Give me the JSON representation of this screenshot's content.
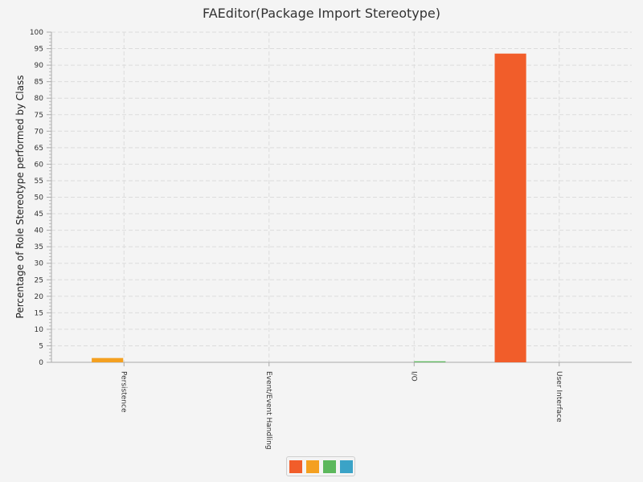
{
  "chart_data": {
    "type": "bar",
    "title": "FAEditor(Package Import Stereotype)",
    "xlabel": "",
    "ylabel": "Percentage of Role Stereotype performed by Class",
    "ylim": [
      0,
      100
    ],
    "ytick_step": 5,
    "grid": true,
    "categories": [
      "Persistence",
      "Event/Event Handling",
      "I/O",
      "User Interface"
    ],
    "series": [
      {
        "color": "#f15d2a",
        "values": [
          0,
          0,
          0,
          93.5
        ]
      },
      {
        "color": "#f4a020",
        "values": [
          1.3,
          0,
          0,
          0
        ]
      },
      {
        "color": "#5cb85c",
        "values": [
          0,
          0,
          0.3,
          0
        ]
      },
      {
        "color": "#3ba3c7",
        "values": [
          0,
          0,
          0,
          0
        ]
      }
    ],
    "legend_position": "bottom-center"
  }
}
